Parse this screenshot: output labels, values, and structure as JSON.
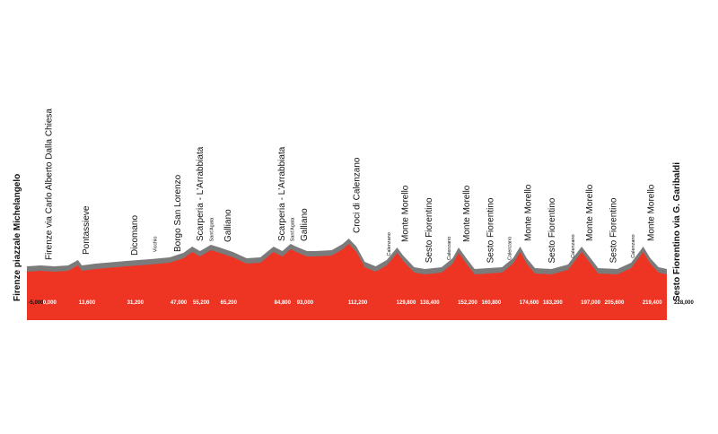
{
  "chart_data": {
    "type": "area",
    "fill_color": "#ee3524",
    "edge_color": "#7b7b7b",
    "xlim": [
      -5,
      228
    ],
    "ylim": [
      0,
      500
    ],
    "x": [
      -5,
      0,
      5,
      10,
      13.6,
      15,
      20,
      31.2,
      40,
      47,
      52,
      55.2,
      58,
      62,
      65.2,
      70,
      75,
      80,
      84.8,
      88,
      91,
      93,
      97,
      100,
      106,
      110,
      112.2,
      115,
      118,
      122,
      126,
      129.8,
      132,
      136,
      140,
      146,
      150,
      152.2,
      155,
      158,
      163,
      168,
      172,
      174.6,
      177,
      180,
      186,
      192,
      197,
      200,
      203,
      210,
      215,
      219.4,
      222,
      225,
      228
    ],
    "values": [
      300,
      305,
      300,
      305,
      335,
      305,
      315,
      330,
      340,
      350,
      375,
      410,
      385,
      420,
      405,
      380,
      345,
      350,
      410,
      385,
      425,
      410,
      385,
      385,
      390,
      425,
      455,
      410,
      325,
      300,
      335,
      405,
      360,
      295,
      285,
      295,
      345,
      405,
      345,
      285,
      290,
      295,
      345,
      410,
      345,
      290,
      285,
      310,
      410,
      350,
      290,
      285,
      320,
      410,
      345,
      295,
      285
    ],
    "places": [
      {
        "name": "Firenze piazzale Michelangelo",
        "x": -5,
        "x_label": "-5,000"
      },
      {
        "name": "Firenze via Carlo Alberto Dalla Chiesa",
        "x": 0,
        "x_label": "0,000"
      },
      {
        "name": "Pontassieve",
        "x": 13.6,
        "x_label": "13,600"
      },
      {
        "name": "Dicomano",
        "x": 31.2,
        "x_label": "31,200"
      },
      {
        "name": "Vicchio",
        "x": 39
      },
      {
        "name": "Borgo San Lorenzo",
        "x": 47,
        "x_label": "47,000"
      },
      {
        "name": "Scarperia - L'Arrabbiata",
        "x": 55.2,
        "x_label": "55,200"
      },
      {
        "name": "Sant'Agata",
        "x": 59.5
      },
      {
        "name": "Galliano",
        "x": 65.2,
        "x_label": "65,200"
      },
      {
        "name": "Scarperia - L'Arrabbiata",
        "x": 84.8,
        "x_label": "84,800"
      },
      {
        "name": "Sant'Agata",
        "x": 89
      },
      {
        "name": "Galliano",
        "x": 93,
        "x_label": "93,000"
      },
      {
        "name": "Croci di Calenzano",
        "x": 112.2,
        "x_label": "112,200"
      },
      {
        "name": "Calenzano",
        "x": 124
      },
      {
        "name": "Monte Morello",
        "x": 129.8,
        "x_label": "129,800"
      },
      {
        "name": "Sesto Fiorentino",
        "x": 138.4,
        "x_label": "138,400"
      },
      {
        "name": "Calenzano",
        "x": 146
      },
      {
        "name": "Monte Morello",
        "x": 152.2,
        "x_label": "152,200"
      },
      {
        "name": "Sesto Fiorentino",
        "x": 160.8,
        "x_label": "160,800"
      },
      {
        "name": "Calenzano",
        "x": 168
      },
      {
        "name": "Monte Morello",
        "x": 174.6,
        "x_label": "174,600"
      },
      {
        "name": "Sesto Fiorentino",
        "x": 183.2,
        "x_label": "183,200"
      },
      {
        "name": "Calenzano",
        "x": 191
      },
      {
        "name": "Monte Morello",
        "x": 197,
        "x_label": "197,000"
      },
      {
        "name": "Sesto Fiorentino",
        "x": 205.6,
        "x_label": "205,600"
      },
      {
        "name": "Calenzano",
        "x": 213
      },
      {
        "name": "Monte Morello",
        "x": 219.4,
        "x_label": "219,400"
      },
      {
        "name": "Sesto Fiorentino via G. Garibaldi",
        "x": 228,
        "x_label": "228,000"
      }
    ]
  }
}
